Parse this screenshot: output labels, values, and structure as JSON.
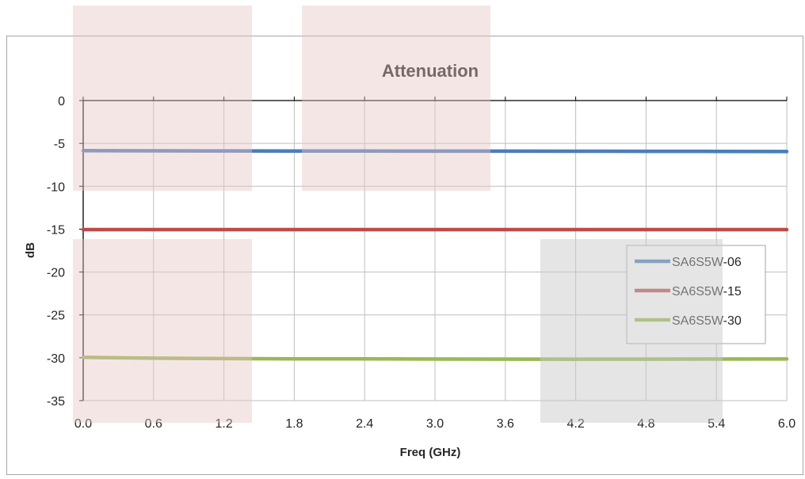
{
  "overlays": [
    {
      "color": "#e8c4c4",
      "opacity": 0.42
    },
    {
      "color": "#e8c4c4",
      "opacity": 0.42
    },
    {
      "color": "#e8c4c4",
      "opacity": 0.42
    },
    {
      "color": "#c8c8c8",
      "opacity": 0.48
    }
  ],
  "chart_data": {
    "type": "line",
    "title": "Attenuation",
    "xlabel": "Freq (GHz)",
    "ylabel": "dB",
    "xlim": [
      0,
      6
    ],
    "ylim": [
      -35,
      0
    ],
    "x_ticks": [
      "0.0",
      "0.6",
      "1.2",
      "1.8",
      "2.4",
      "3.0",
      "3.6",
      "4.2",
      "4.8",
      "5.4",
      "6.0"
    ],
    "y_ticks": [
      "0",
      "-5",
      "-10",
      "-15",
      "-20",
      "-25",
      "-30",
      "-35"
    ],
    "grid": true,
    "legend_position": "right",
    "series": [
      {
        "name": "SA6S5W-06",
        "color": "#4a7ebb",
        "x": [
          0,
          0.6,
          1.2,
          1.8,
          2.4,
          3.0,
          3.6,
          4.2,
          4.8,
          5.4,
          6.0
        ],
        "y": [
          -5.85,
          -5.86,
          -5.87,
          -5.88,
          -5.89,
          -5.9,
          -5.9,
          -5.91,
          -5.92,
          -5.93,
          -5.95
        ]
      },
      {
        "name": "SA6S5W-15",
        "color": "#be4b48",
        "x": [
          0,
          0.6,
          1.2,
          1.8,
          2.4,
          3.0,
          3.6,
          4.2,
          4.8,
          5.4,
          6.0
        ],
        "y": [
          -15.05,
          -15.05,
          -15.05,
          -15.05,
          -15.05,
          -15.05,
          -15.05,
          -15.05,
          -15.05,
          -15.05,
          -15.05
        ]
      },
      {
        "name": "SA6S5W-30",
        "color": "#98b954",
        "x": [
          0,
          0.3,
          0.6,
          1.2,
          1.8,
          2.4,
          3.0,
          3.6,
          4.2,
          4.8,
          5.4,
          6.0
        ],
        "y": [
          -29.95,
          -30.0,
          -30.05,
          -30.1,
          -30.12,
          -30.13,
          -30.15,
          -30.16,
          -30.17,
          -30.16,
          -30.15,
          -30.14
        ]
      }
    ]
  }
}
